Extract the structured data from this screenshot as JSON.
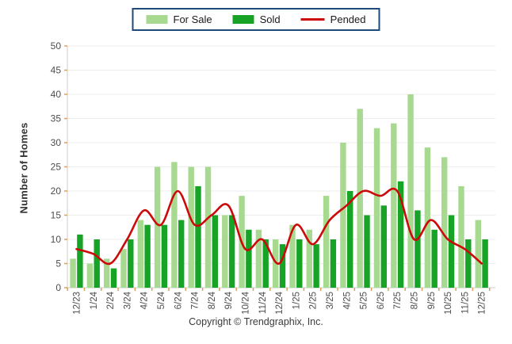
{
  "legend": {
    "items": [
      {
        "label": "For Sale",
        "swatch_color": "#a8d990",
        "kind": "bar"
      },
      {
        "label": "Sold",
        "swatch_color": "#16a326",
        "kind": "bar"
      },
      {
        "label": "Pended",
        "swatch_color": "#cc0a0a",
        "kind": "line"
      }
    ],
    "border_color": "#1d4a7a"
  },
  "y_axis": {
    "title": "Number of Homes",
    "tick_labels": [
      "0",
      "5",
      "10",
      "15",
      "20",
      "25",
      "30",
      "35",
      "40",
      "45",
      "50"
    ]
  },
  "footer": {
    "text": "Copyright © Trendgraphix, Inc."
  },
  "colors": {
    "for_sale": "#a8d990",
    "sold": "#16a326",
    "pended": "#cc0a0a",
    "gridline": "#ededed",
    "axis_line": "#cccccc",
    "tick_mark": "#dfa054",
    "tick_text": "#4d4d4d"
  },
  "chart_data": {
    "type": "bar",
    "categories": [
      "12/23",
      "1/24",
      "2/24",
      "3/24",
      "4/24",
      "5/24",
      "6/24",
      "7/24",
      "8/24",
      "9/24",
      "10/24",
      "11/24",
      "12/24",
      "1/25",
      "2/25",
      "3/25",
      "4/25",
      "5/25",
      "6/25",
      "7/25",
      "8/25",
      "9/25",
      "10/25",
      "11/25",
      "12/25"
    ],
    "series": [
      {
        "name": "For Sale",
        "type": "bar",
        "color": "#a8d990",
        "values": [
          6,
          5,
          6,
          8,
          14,
          25,
          26,
          25,
          25,
          15,
          19,
          12,
          10,
          13,
          12,
          19,
          30,
          37,
          33,
          34,
          40,
          29,
          27,
          21,
          14
        ]
      },
      {
        "name": "Sold",
        "type": "bar",
        "color": "#16a326",
        "values": [
          11,
          10,
          4,
          10,
          13,
          13,
          14,
          21,
          15,
          15,
          12,
          10,
          9,
          10,
          9,
          10,
          20,
          15,
          17,
          22,
          16,
          12,
          15,
          10,
          10
        ]
      },
      {
        "name": "Pended",
        "type": "line",
        "color": "#cc0a0a",
        "values": [
          8,
          7,
          5,
          10,
          16,
          13,
          20,
          13,
          15,
          17,
          8,
          10,
          5,
          13,
          9,
          14,
          17,
          20,
          19,
          20,
          10,
          14,
          10,
          8,
          5
        ]
      }
    ],
    "title": "",
    "xlabel": "",
    "ylabel": "Number of Homes",
    "ylim": [
      0,
      50
    ],
    "ytick_step": 5,
    "grid": true,
    "legend_position": "top-center"
  }
}
